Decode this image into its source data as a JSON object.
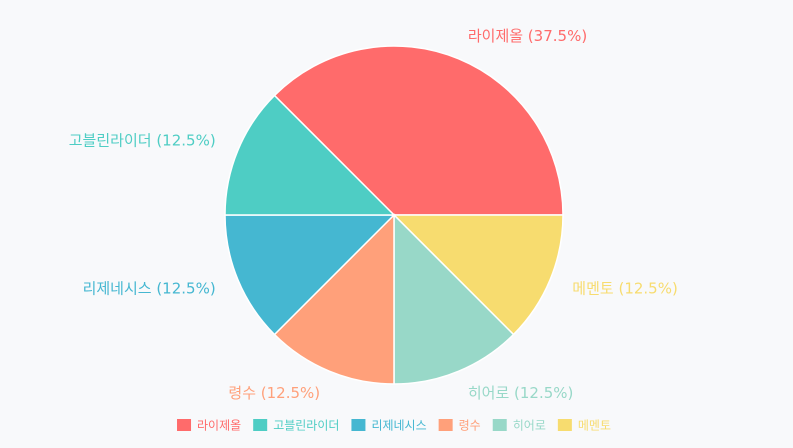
{
  "chart_data": {
    "type": "pie",
    "title": "",
    "legend_position": "bottom",
    "series": [
      {
        "name": "라이제올",
        "value": 37.5,
        "label": "라이제올 (37.5%)",
        "color": "#ff6b6b"
      },
      {
        "name": "메멘토",
        "value": 12.5,
        "label": "메멘토 (12.5%)",
        "color": "#f7dc6f"
      },
      {
        "name": "히어로",
        "value": 12.5,
        "label": "히어로 (12.5%)",
        "color": "#98d8c8"
      },
      {
        "name": "령수",
        "value": 12.5,
        "label": "령수 (12.5%)",
        "color": "#ffa07a"
      },
      {
        "name": "리제네시스",
        "value": 12.5,
        "label": "리제네시스 (12.5%)",
        "color": "#45b7d1"
      },
      {
        "name": "고블린라이더",
        "value": 12.5,
        "label": "고블린라이더 (12.5%)",
        "color": "#4ecdc4"
      }
    ],
    "legend": [
      "라이제올",
      "고블린라이더",
      "리제네시스",
      "령수",
      "히어로",
      "메멘토"
    ]
  }
}
